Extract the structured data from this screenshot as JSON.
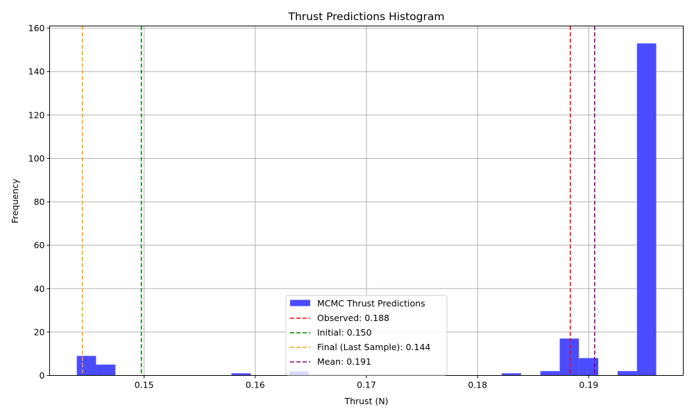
{
  "chart_data": {
    "type": "bar",
    "title": "Thrust Predictions Histogram",
    "xlabel": "Thrust (N)",
    "ylabel": "Frequency",
    "xlim": [
      0.1415,
      0.1985
    ],
    "ylim": [
      0,
      161
    ],
    "x_ticks": [
      {
        "value": 0.15,
        "label": "0.15"
      },
      {
        "value": 0.16,
        "label": "0.16"
      },
      {
        "value": 0.17,
        "label": "0.17"
      },
      {
        "value": 0.18,
        "label": "0.18"
      },
      {
        "value": 0.19,
        "label": "0.19"
      }
    ],
    "y_ticks": [
      {
        "value": 0,
        "label": "0"
      },
      {
        "value": 20,
        "label": "20"
      },
      {
        "value": 40,
        "label": "40"
      },
      {
        "value": 60,
        "label": "60"
      },
      {
        "value": 80,
        "label": "80"
      },
      {
        "value": 100,
        "label": "100"
      },
      {
        "value": 120,
        "label": "120"
      },
      {
        "value": 140,
        "label": "140"
      },
      {
        "value": 160,
        "label": "160"
      }
    ],
    "grid": true,
    "bar_color": "#4b4bff",
    "series": [
      {
        "name": "MCMC Thrust Predictions",
        "bins": [
          {
            "x0": 0.14395,
            "x1": 0.14568,
            "count": 9
          },
          {
            "x0": 0.14568,
            "x1": 0.14742,
            "count": 5
          },
          {
            "x0": 0.15786,
            "x1": 0.1596,
            "count": 1
          },
          {
            "x0": 0.16307,
            "x1": 0.16481,
            "count": 2
          },
          {
            "x0": 0.18218,
            "x1": 0.18391,
            "count": 1
          },
          {
            "x0": 0.18565,
            "x1": 0.18739,
            "count": 2
          },
          {
            "x0": 0.18739,
            "x1": 0.18912,
            "count": 17
          },
          {
            "x0": 0.18912,
            "x1": 0.19086,
            "count": 8
          },
          {
            "x0": 0.1926,
            "x1": 0.19434,
            "count": 2
          },
          {
            "x0": 0.19434,
            "x1": 0.19607,
            "count": 153
          }
        ]
      }
    ],
    "reference_lines": [
      {
        "name": "Observed: 0.188",
        "x": 0.18834,
        "color": "#ff0000"
      },
      {
        "name": "Initial: 0.150",
        "x": 0.14975,
        "color": "#008000"
      },
      {
        "name": "Final (Last Sample): 0.144",
        "x": 0.14445,
        "color": "#ffa500"
      },
      {
        "name": "Mean: 0.191",
        "x": 0.19053,
        "color": "#800080"
      }
    ],
    "legend": {
      "position": "lower center",
      "entries": [
        {
          "label": "MCMC Thrust Predictions",
          "kind": "patch",
          "color": "#4b4bff"
        },
        {
          "label": "Observed: 0.188",
          "kind": "dashed-line",
          "color": "#ff0000"
        },
        {
          "label": "Initial: 0.150",
          "kind": "dashed-line",
          "color": "#008000"
        },
        {
          "label": "Final (Last Sample): 0.144",
          "kind": "dashed-line",
          "color": "#ffa500"
        },
        {
          "label": "Mean: 0.191",
          "kind": "dashed-line",
          "color": "#800080"
        }
      ]
    }
  }
}
